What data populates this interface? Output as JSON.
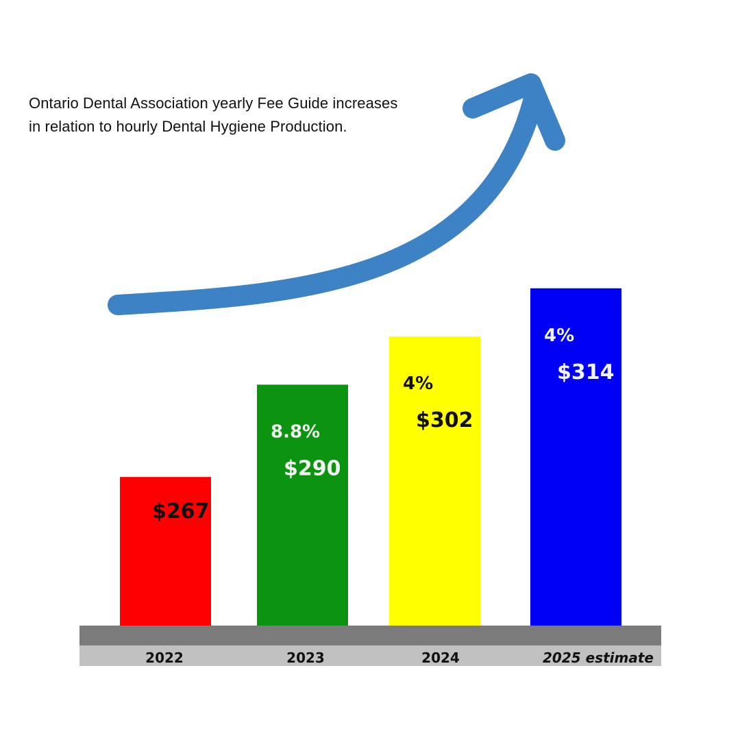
{
  "title": {
    "line1": "Ontario Dental Association yearly Fee Guide increases",
    "line2": "in relation to hourly Dental Hygiene Production."
  },
  "colors": {
    "arrow": "#3d82c4",
    "baseline_dark": "#7b7b7b",
    "baseline_light": "#c1c1c1"
  },
  "chart_data": {
    "type": "bar",
    "title": "Ontario Dental Association yearly Fee Guide increases in relation to hourly Dental Hygiene Production.",
    "categories": [
      "2022",
      "2023",
      "2024",
      "2025 estimate"
    ],
    "values": [
      267,
      290,
      302,
      314
    ],
    "value_labels": [
      "$267",
      "$290",
      "$302",
      "$314"
    ],
    "percent_labels": [
      "",
      "8.8%",
      "4%",
      "4%"
    ],
    "bar_colors": [
      "#ff0000",
      "#0c9410",
      "#ffff00",
      "#0000f5"
    ],
    "label_colors": [
      "#111111",
      "#f2f2f2",
      "#111111",
      "#f2f2f2"
    ],
    "ylim": [
      230,
      330
    ],
    "grid": false,
    "legend": "none",
    "annotation": "upward-trend-arrow"
  }
}
